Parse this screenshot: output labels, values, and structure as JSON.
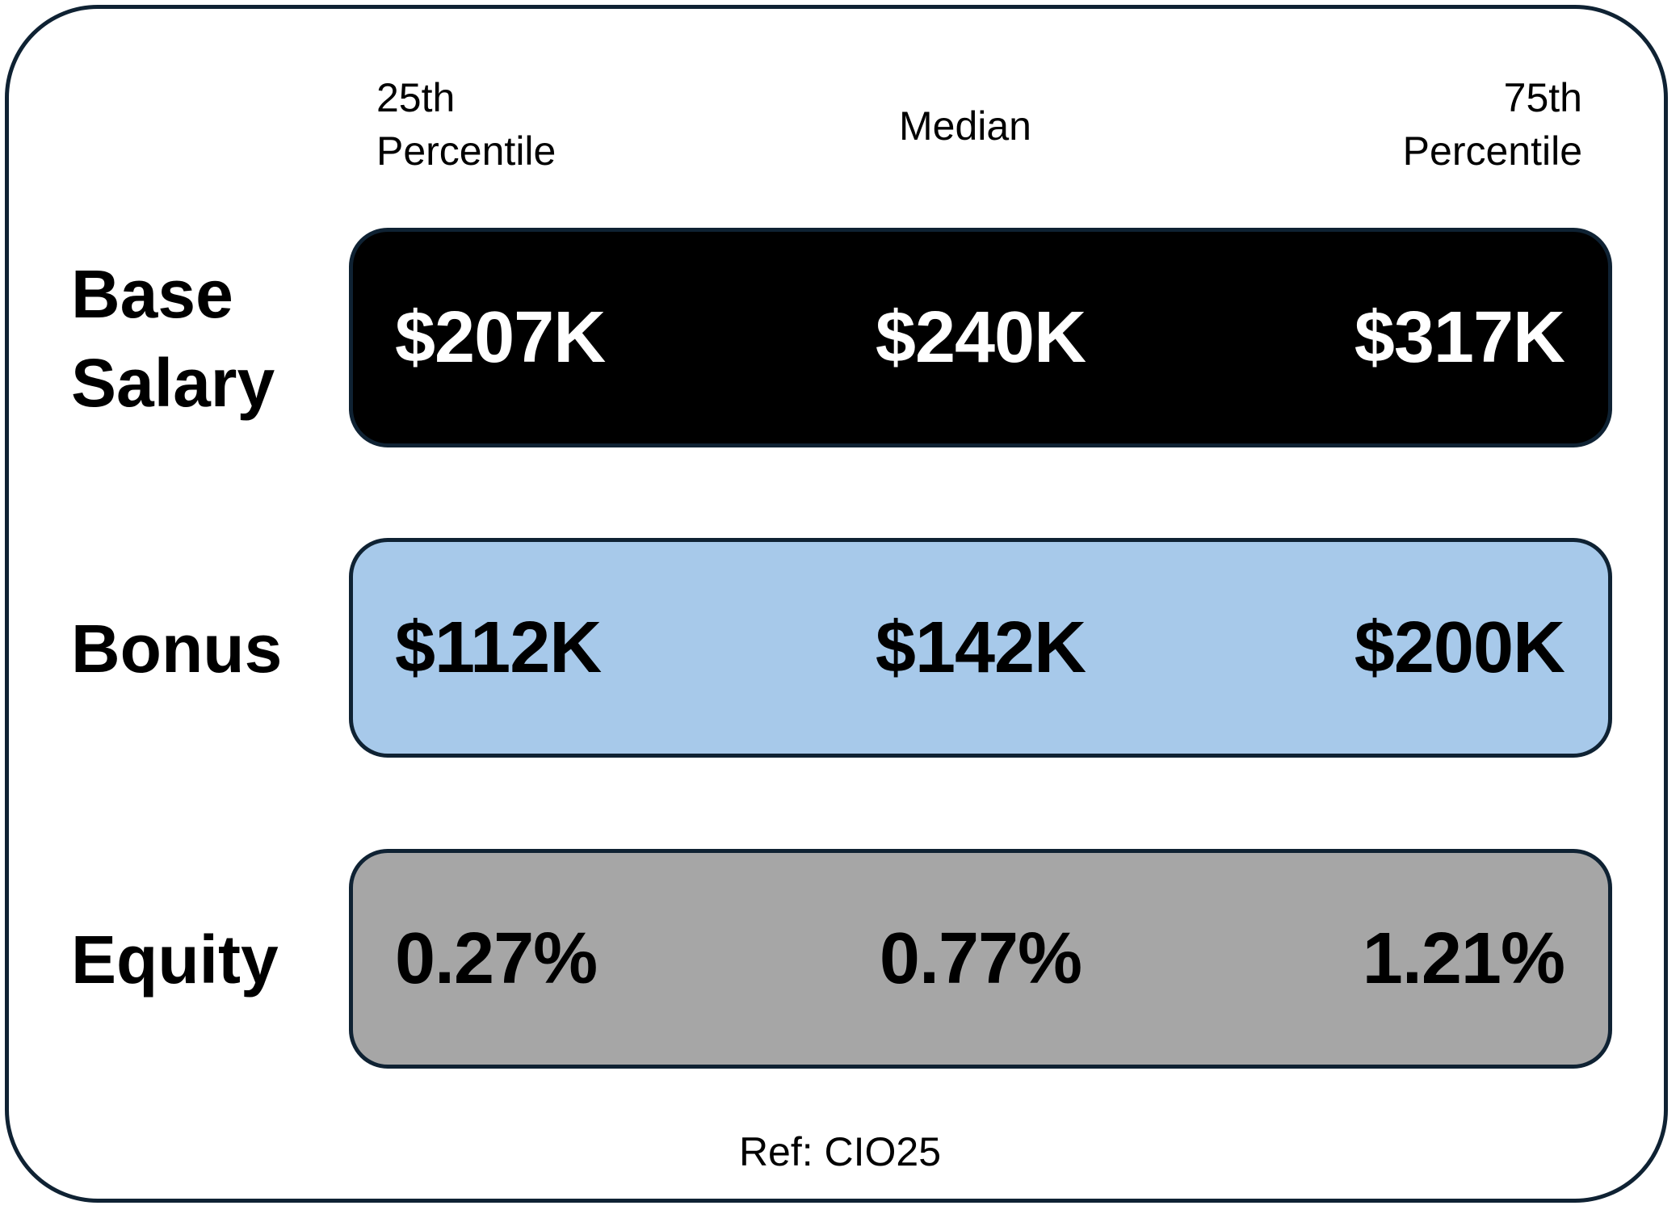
{
  "columns": {
    "p25": [
      "25th",
      "Percentile"
    ],
    "median": "Median",
    "p75": [
      "75th",
      "Percentile"
    ]
  },
  "rows": [
    {
      "label": [
        "Base",
        "Salary"
      ],
      "values": [
        "$207K",
        "$240K",
        "$317K"
      ],
      "fill": "#000000",
      "text_color": "#ffffff"
    },
    {
      "label": [
        "Bonus"
      ],
      "values": [
        "$112K",
        "$142K",
        "$200K"
      ],
      "fill": "#a7c9ea",
      "text_color": "#000000"
    },
    {
      "label": [
        "Equity"
      ],
      "values": [
        "0.27%",
        "0.77%",
        "1.21%"
      ],
      "fill": "#a6a6a6",
      "text_color": "#000000"
    }
  ],
  "reference": "Ref: CIO25",
  "colors": {
    "border": "#0f2233",
    "background": "#ffffff"
  }
}
